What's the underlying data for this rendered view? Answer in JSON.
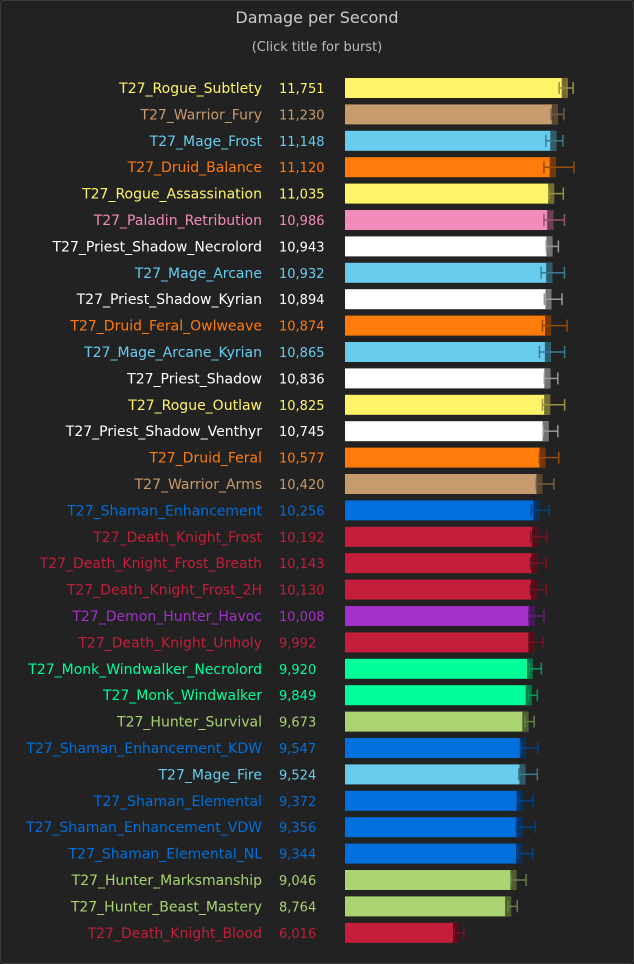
{
  "chart_data": {
    "type": "bar",
    "orientation": "horizontal",
    "title": "Damage per Second",
    "subtitle": "(Click title for burst)",
    "xlim": [
      0,
      13500
    ],
    "grid": false,
    "legend": "none",
    "series": [
      {
        "name": "T27_Rogue_Subtlety",
        "value": 11751,
        "label": "11,751",
        "color": "#fff468",
        "err": [
          11300,
          12040
        ]
      },
      {
        "name": "T27_Warrior_Fury",
        "value": 11230,
        "label": "11,230",
        "color": "#c69b6d",
        "err": [
          10880,
          11550
        ]
      },
      {
        "name": "T27_Mage_Frost",
        "value": 11148,
        "label": "11,148",
        "color": "#68ccef",
        "err": [
          10600,
          11500
        ]
      },
      {
        "name": "T27_Druid_Balance",
        "value": 11120,
        "label": "11,120",
        "color": "#ff7c0a",
        "err": [
          10500,
          12080
        ]
      },
      {
        "name": "T27_Rogue_Assassination",
        "value": 11035,
        "label": "11,035",
        "color": "#fff468",
        "err": [
          10750,
          11520
        ]
      },
      {
        "name": "T27_Paladin_Retribution",
        "value": 10986,
        "label": "10,986",
        "color": "#f48cba",
        "err": [
          10500,
          11580
        ]
      },
      {
        "name": "T27_Priest_Shadow_Necrolord",
        "value": 10943,
        "label": "10,943",
        "color": "#ffffff",
        "err": [
          10620,
          11260
        ]
      },
      {
        "name": "T27_Mage_Arcane",
        "value": 10932,
        "label": "10,932",
        "color": "#68ccef",
        "err": [
          10350,
          11580
        ]
      },
      {
        "name": "T27_Priest_Shadow_Kyrian",
        "value": 10894,
        "label": "10,894",
        "color": "#ffffff",
        "err": [
          10520,
          11450
        ]
      },
      {
        "name": "T27_Druid_Feral_Owlweave",
        "value": 10874,
        "label": "10,874",
        "color": "#ff7c0a",
        "err": [
          10420,
          11720
        ]
      },
      {
        "name": "T27_Mage_Arcane_Kyrian",
        "value": 10865,
        "label": "10,865",
        "color": "#68ccef",
        "err": [
          10260,
          11590
        ]
      },
      {
        "name": "T27_Priest_Shadow",
        "value": 10836,
        "label": "10,836",
        "color": "#ffffff",
        "err": [
          10520,
          11230
        ]
      },
      {
        "name": "T27_Rogue_Outlaw",
        "value": 10825,
        "label": "10,825",
        "color": "#fff468",
        "err": [
          10420,
          11590
        ]
      },
      {
        "name": "T27_Priest_Shadow_Venthyr",
        "value": 10745,
        "label": "10,745",
        "color": "#ffffff",
        "err": [
          10460,
          11230
        ]
      },
      {
        "name": "T27_Druid_Feral",
        "value": 10577,
        "label": "10,577",
        "color": "#ff7c0a",
        "err": [
          10260,
          11280
        ]
      },
      {
        "name": "T27_Warrior_Arms",
        "value": 10420,
        "label": "10,420",
        "color": "#c69b6d",
        "err": [
          10100,
          11020
        ]
      },
      {
        "name": "T27_Shaman_Enhancement",
        "value": 10256,
        "label": "10,256",
        "color": "#0070dd",
        "err": [
          9830,
          10770
        ]
      },
      {
        "name": "T27_Death_Knight_Frost",
        "value": 10192,
        "label": "10,192",
        "color": "#c41e3a",
        "err": [
          9800,
          10650
        ]
      },
      {
        "name": "T27_Death_Knight_Frost_Breath",
        "value": 10143,
        "label": "10,143",
        "color": "#c41e3a",
        "err": [
          9780,
          10630
        ]
      },
      {
        "name": "T27_Death_Knight_Frost_2H",
        "value": 10130,
        "label": "10,130",
        "color": "#c41e3a",
        "err": [
          9780,
          10630
        ]
      },
      {
        "name": "T27_Demon_Hunter_Havoc",
        "value": 10008,
        "label": "10,008",
        "color": "#a330c9",
        "err": [
          9700,
          10500
        ]
      },
      {
        "name": "T27_Death_Knight_Unholy",
        "value": 9992,
        "label": "9,992",
        "color": "#c41e3a",
        "err": [
          9700,
          10450
        ]
      },
      {
        "name": "T27_Monk_Windwalker_Necrolord",
        "value": 9920,
        "label": "9,920",
        "color": "#00ff98",
        "err": [
          9720,
          10360
        ]
      },
      {
        "name": "T27_Monk_Windwalker",
        "value": 9849,
        "label": "9,849",
        "color": "#00ff98",
        "err": [
          9680,
          10150
        ]
      },
      {
        "name": "T27_Hunter_Survival",
        "value": 9673,
        "label": "9,673",
        "color": "#aad372",
        "err": [
          9500,
          9980
        ]
      },
      {
        "name": "T27_Shaman_Enhancement_KDW",
        "value": 9547,
        "label": "9,547",
        "color": "#0070dd",
        "err": [
          9260,
          10180
        ]
      },
      {
        "name": "T27_Mage_Fire",
        "value": 9524,
        "label": "9,524",
        "color": "#68ccef",
        "err": [
          9170,
          10150
        ]
      },
      {
        "name": "T27_Shaman_Elemental",
        "value": 9372,
        "label": "9,372",
        "color": "#0070dd",
        "err": [
          9150,
          9900
        ]
      },
      {
        "name": "T27_Shaman_Enhancement_VDW",
        "value": 9356,
        "label": "9,356",
        "color": "#0070dd",
        "err": [
          9050,
          10030
        ]
      },
      {
        "name": "T27_Shaman_Elemental_NL",
        "value": 9344,
        "label": "9,344",
        "color": "#0070dd",
        "err": [
          9130,
          9900
        ]
      },
      {
        "name": "T27_Hunter_Marksmanship",
        "value": 9046,
        "label": "9,046",
        "color": "#aad372",
        "err": [
          8760,
          9560
        ]
      },
      {
        "name": "T27_Hunter_Beast_Mastery",
        "value": 8764,
        "label": "8,764",
        "color": "#aad372",
        "err": [
          8600,
          9090
        ]
      },
      {
        "name": "T27_Death_Knight_Blood",
        "value": 6016,
        "label": "6,016",
        "color": "#c41e3a",
        "err": [
          5770,
          6270
        ]
      }
    ]
  }
}
